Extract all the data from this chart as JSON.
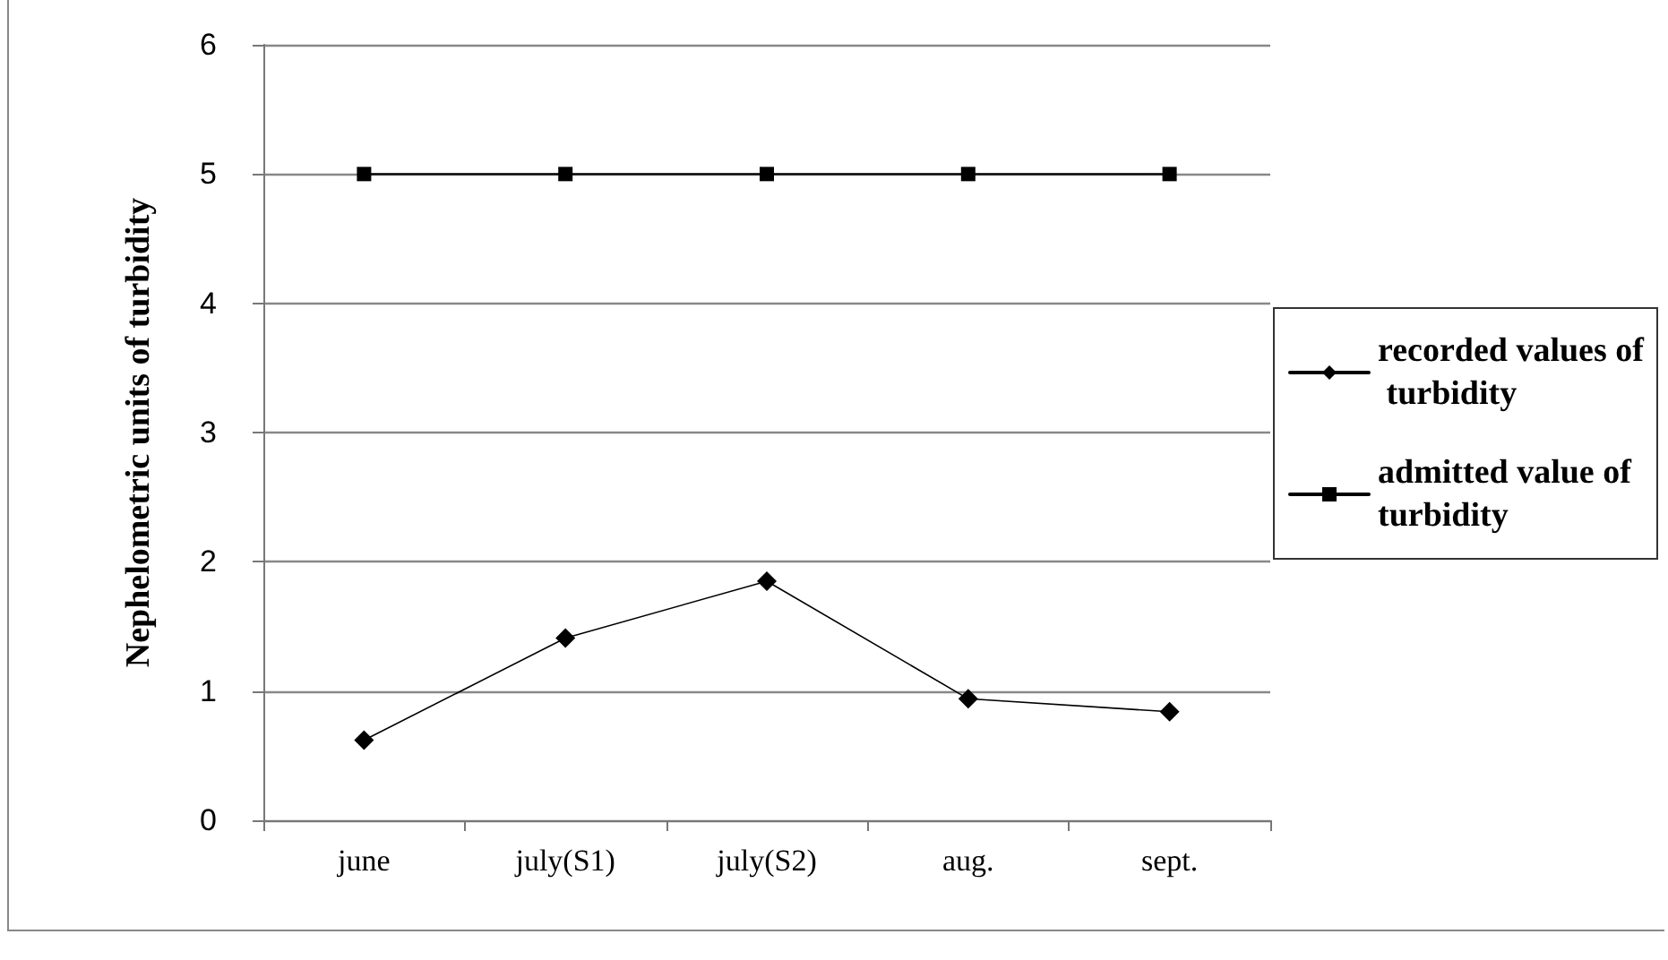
{
  "chart_data": {
    "type": "line",
    "ylabel": "Nephelometric units of turbidity",
    "categories": [
      "june",
      "july(S1)",
      "july(S2)",
      "aug.",
      "sept."
    ],
    "series": [
      {
        "name": "recorded values of turbidity",
        "color": "#000000",
        "marker": "diamond",
        "values": [
          0.62,
          1.41,
          1.85,
          0.94,
          0.84
        ]
      },
      {
        "name": "admitted value of turbidity",
        "color": "#000000",
        "marker": "square",
        "values": [
          5,
          5,
          5,
          5,
          5
        ]
      }
    ],
    "ylim": [
      0,
      6
    ],
    "yticks": [
      0,
      1,
      2,
      3,
      4,
      5,
      6
    ],
    "grid": "y",
    "legend": "right",
    "line_style": "solid"
  }
}
